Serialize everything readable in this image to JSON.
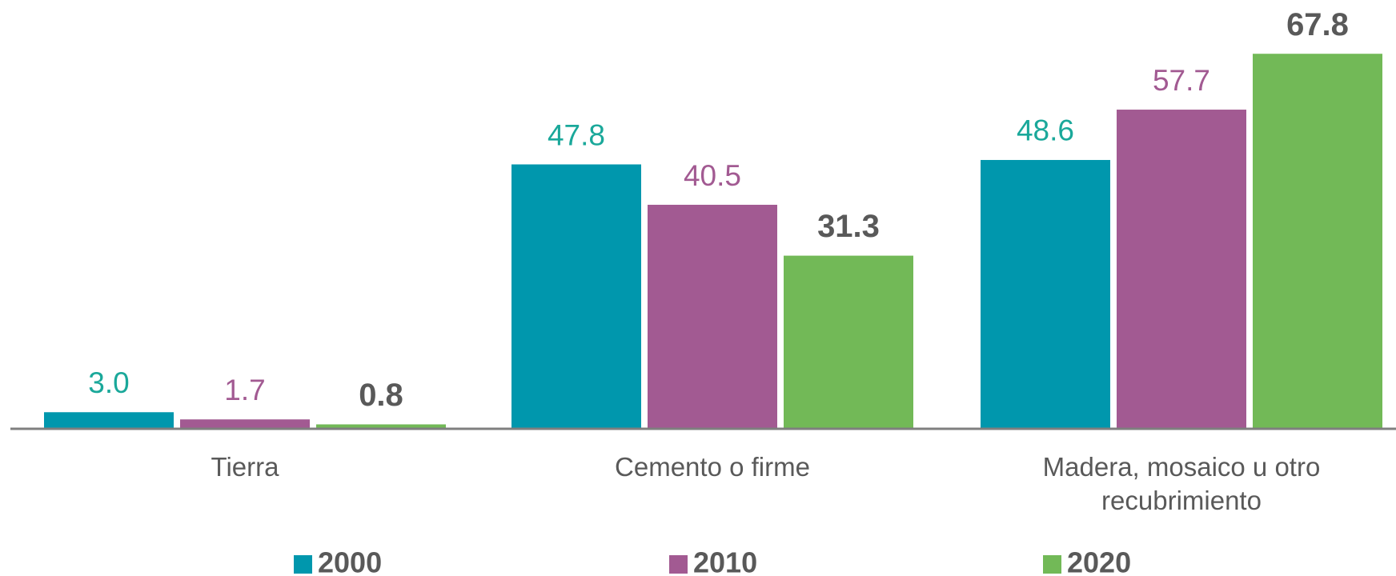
{
  "chart_data": {
    "type": "bar",
    "categories": [
      "Tierra",
      "Cemento o firme",
      "Madera, mosaico u otro recubrimiento"
    ],
    "series": [
      {
        "name": "2000",
        "color": "#0097ad",
        "values": [
          3.0,
          47.8,
          48.6
        ],
        "value_labels": [
          "3.0",
          "47.8",
          "48.6"
        ]
      },
      {
        "name": "2010",
        "color": "#a25a92",
        "values": [
          1.7,
          40.5,
          57.7
        ],
        "value_labels": [
          "1.7",
          "40.5",
          "57.7"
        ]
      },
      {
        "name": "2020",
        "color": "#72b957",
        "values": [
          0.8,
          31.3,
          67.8
        ],
        "value_labels": [
          "0.8",
          "31.3",
          "67.8"
        ]
      }
    ],
    "ylim": [
      0,
      70
    ]
  }
}
